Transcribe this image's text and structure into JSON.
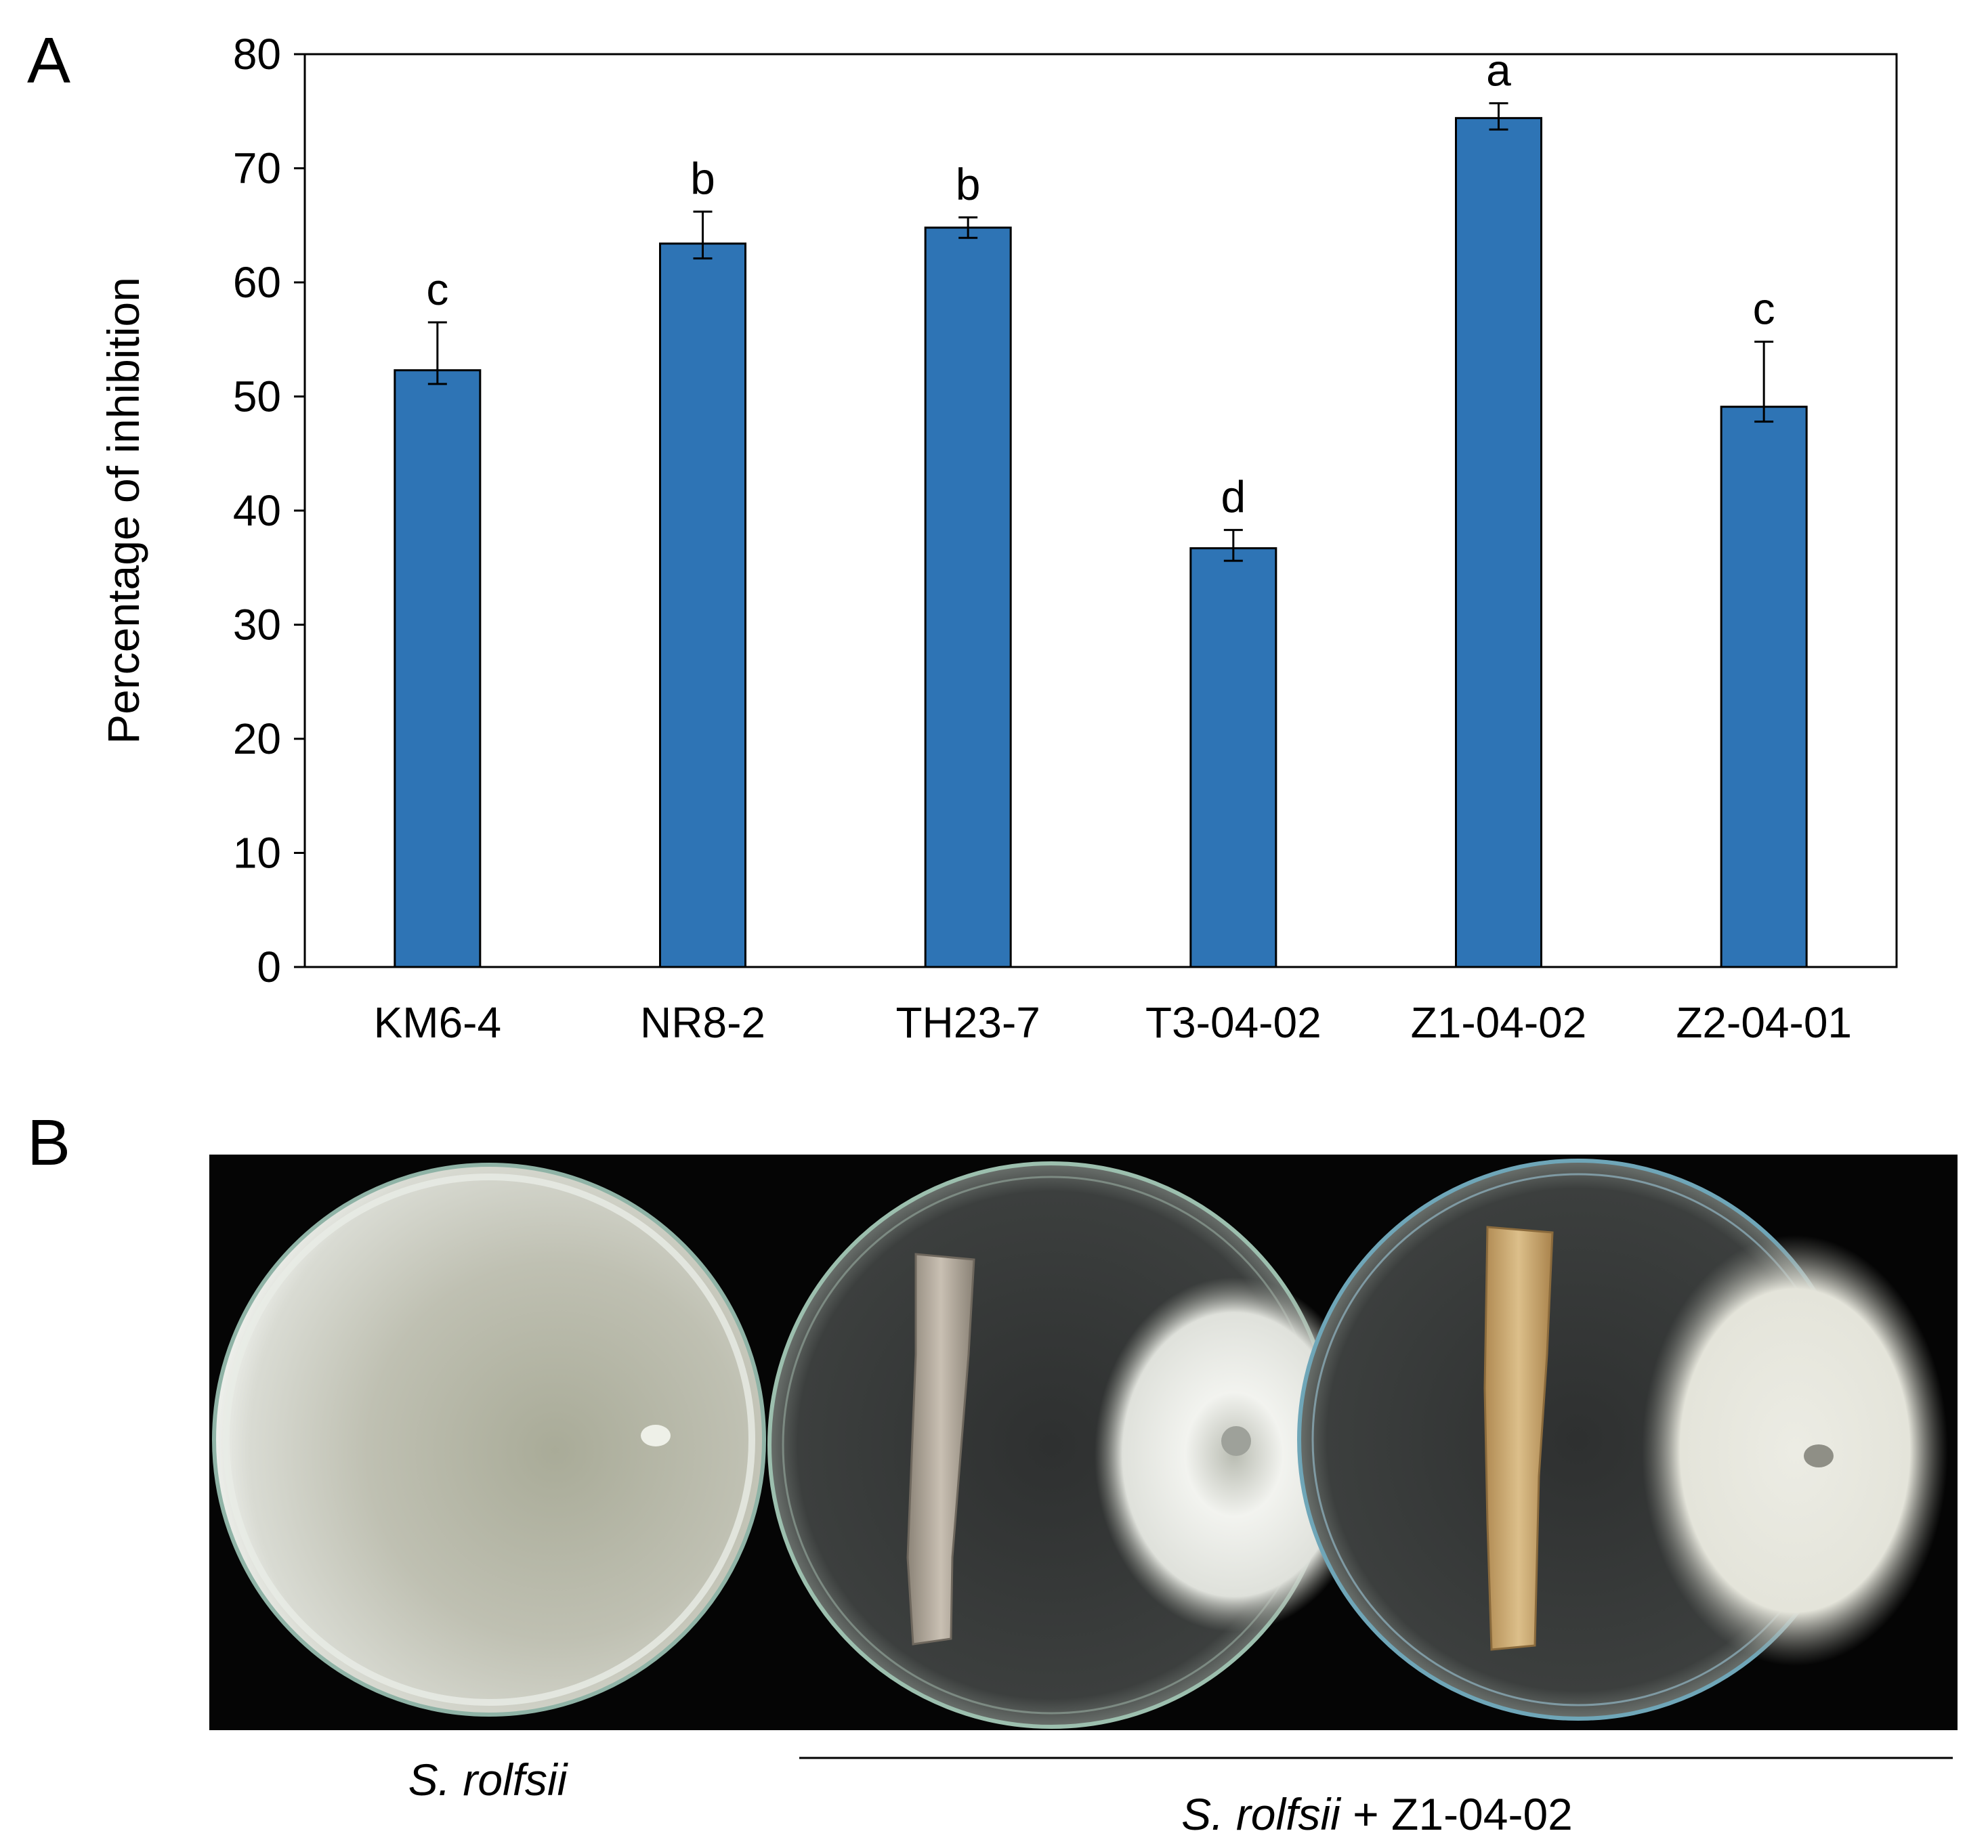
{
  "panels": {
    "a_label": "A",
    "b_label": "B"
  },
  "chart_data": {
    "type": "bar",
    "title": "",
    "xlabel": "",
    "ylabel": "Percentage of inhibition",
    "ylim": [
      0,
      80
    ],
    "yticks": [
      0,
      10,
      20,
      30,
      40,
      50,
      60,
      70,
      80
    ],
    "grid": false,
    "categories": [
      "KM6-4",
      "NR8-2",
      "TH23-7",
      "T3-04-02",
      "Z1-04-02",
      "Z2-04-01"
    ],
    "values": [
      52.3,
      63.4,
      64.8,
      36.7,
      74.4,
      49.1
    ],
    "errors_upper": [
      4.2,
      2.8,
      0.9,
      1.6,
      1.3,
      5.7
    ],
    "errors_lower": [
      1.2,
      1.3,
      0.9,
      1.1,
      1.0,
      1.3
    ],
    "significance": [
      "c",
      "b",
      "b",
      "d",
      "a",
      "c"
    ],
    "bar_color": "#2e74b5"
  },
  "photo_panel": {
    "caption_left_italic": "S. rolfsii",
    "caption_right_italic": "S. rolfsii",
    "caption_right_rest": " + Z1-04-02",
    "background_color": "#050505"
  }
}
